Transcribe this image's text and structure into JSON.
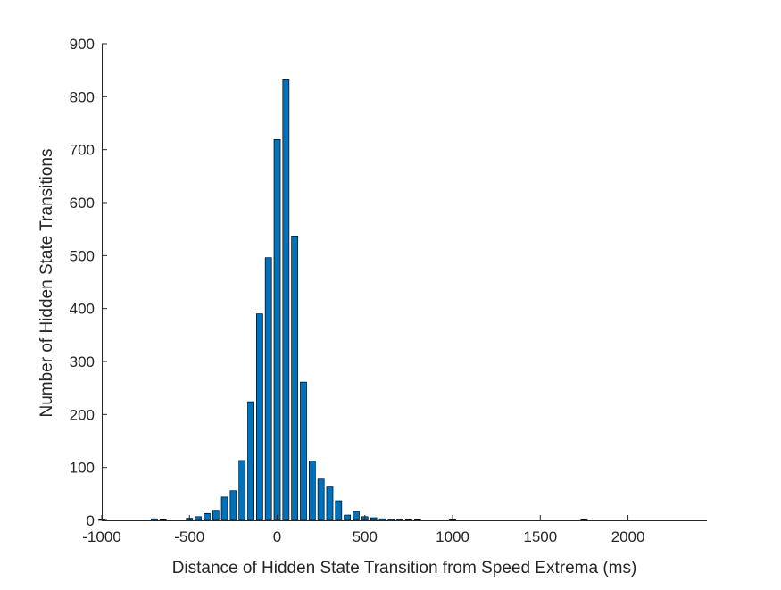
{
  "chart_data": {
    "type": "bar",
    "title": "",
    "xlabel": "Distance of Hidden State Transition from Speed Extrema (ms)",
    "ylabel": "Number of Hidden State Transitions",
    "xlim": [
      -1000,
      2450
    ],
    "ylim": [
      0,
      900
    ],
    "xticks": [
      -1000,
      -500,
      0,
      500,
      1000,
      1500,
      2000
    ],
    "yticks": [
      0,
      100,
      200,
      300,
      400,
      500,
      600,
      700,
      800,
      900
    ],
    "xtick_labels": [
      "-1000",
      "-500",
      "0",
      "500",
      "1000",
      "1500",
      "2000"
    ],
    "ytick_labels": [
      "0",
      "100",
      "200",
      "300",
      "400",
      "500",
      "600",
      "700",
      "800",
      "900"
    ],
    "bin_width": 50,
    "bar_color": "#0072BD",
    "edge_color": "#000000",
    "grid": false,
    "x": [
      -1000,
      -950,
      -900,
      -850,
      -800,
      -750,
      -700,
      -650,
      -600,
      -550,
      -500,
      -450,
      -400,
      -350,
      -300,
      -250,
      -200,
      -150,
      -100,
      -50,
      0,
      50,
      100,
      150,
      200,
      250,
      300,
      350,
      400,
      450,
      500,
      550,
      600,
      650,
      700,
      750,
      800,
      850,
      900,
      950,
      1000,
      1050,
      1100,
      1150,
      1200,
      1250,
      1300,
      1350,
      1400,
      1450,
      1500,
      1550,
      1600,
      1650,
      1700,
      1750,
      1800,
      1850,
      1900,
      1950,
      2000,
      2050,
      2100,
      2150,
      2200,
      2250,
      2300,
      2350,
      2400
    ],
    "values": [
      1,
      0,
      0,
      0,
      0,
      0,
      3,
      1,
      0,
      0,
      4,
      7,
      13,
      19,
      44,
      56,
      113,
      224,
      390,
      496,
      719,
      832,
      537,
      261,
      112,
      78,
      63,
      37,
      10,
      17,
      7,
      5,
      3,
      2,
      2,
      1,
      1,
      0,
      0,
      0,
      1,
      0,
      0,
      0,
      0,
      0,
      0,
      0,
      0,
      0,
      0,
      0,
      0,
      0,
      0,
      1,
      0,
      0,
      0,
      0,
      0,
      0,
      0,
      0,
      0,
      0,
      0,
      0,
      0
    ]
  }
}
